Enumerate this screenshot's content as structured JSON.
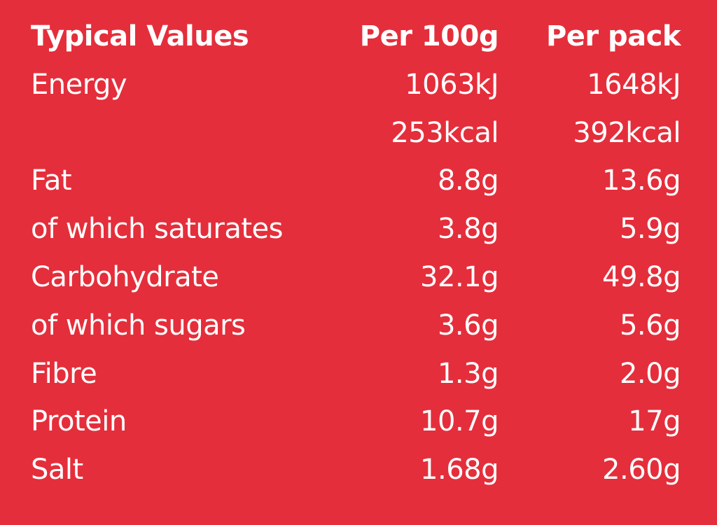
{
  "table": {
    "header": [
      "Typical Values",
      "Per 100g",
      "Per pack"
    ],
    "rows": [
      [
        "Energy",
        "1063kJ",
        "1648kJ"
      ],
      [
        null,
        "253kcal",
        "392kcal"
      ],
      [
        "Fat",
        "8.8g",
        "13.6g"
      ],
      [
        "of which saturates",
        "3.8g",
        "5.9g"
      ],
      [
        "Carbohydrate",
        "32.1g",
        "49.8g"
      ],
      [
        "of which sugars",
        "3.6g",
        "5.6g"
      ],
      [
        "Fibre",
        "1.3g",
        "2.0g"
      ],
      [
        "Protein",
        "10.7g",
        "17g"
      ],
      [
        "Salt",
        "1.68g",
        "2.60g"
      ]
    ]
  }
}
